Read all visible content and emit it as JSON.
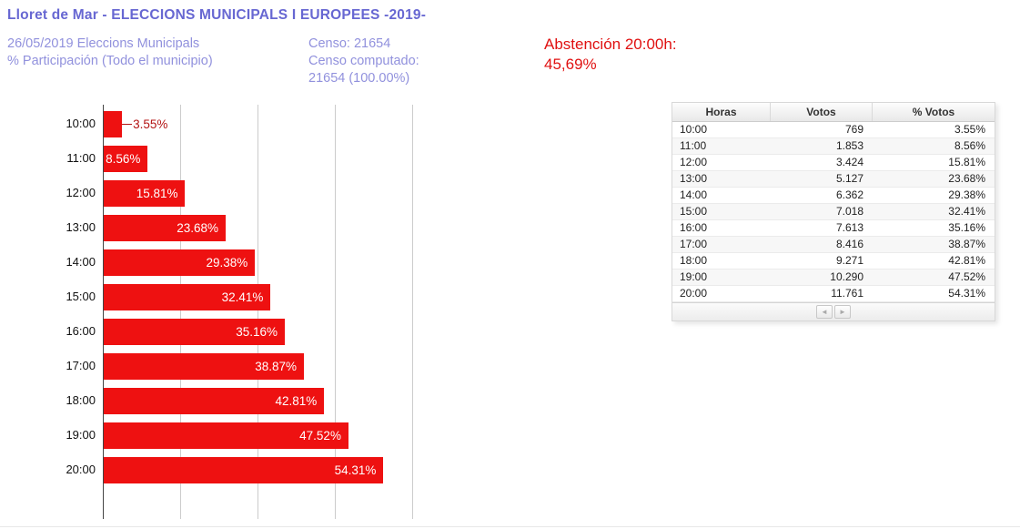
{
  "header": {
    "title": "Lloret de Mar - ELECCIONS MUNICIPALS I EUROPEES -2019-",
    "subtitle_line1": "26/05/2019 Eleccions Municipals",
    "subtitle_line2": "% Participación (Todo el municipio)",
    "censo_line1": "Censo: 21654",
    "censo_line2": "Censo computado:",
    "censo_line3": "21654 (100.00%)",
    "abstencion_line1": "Abstención 20:00h:",
    "abstencion_line2": "45,69%"
  },
  "colors": {
    "title_blue": "#6767d2",
    "subtitle_blue": "#9191dd",
    "abstencion_red": "#e01111",
    "bar_red": "#ee1111",
    "outside_label_red": "#b41414",
    "gridline_gray": "#cccccc"
  },
  "chart_data": {
    "type": "bar",
    "orientation": "horizontal",
    "title": "",
    "xlabel": "",
    "ylabel": "",
    "categories": [
      "10:00",
      "11:00",
      "12:00",
      "13:00",
      "14:00",
      "15:00",
      "16:00",
      "17:00",
      "18:00",
      "19:00",
      "20:00"
    ],
    "values": [
      3.55,
      8.56,
      15.81,
      23.68,
      29.38,
      32.41,
      35.16,
      38.87,
      42.81,
      47.52,
      54.31
    ],
    "value_labels": [
      "3.55%",
      "8.56%",
      "15.81%",
      "23.68%",
      "29.38%",
      "32.41%",
      "35.16%",
      "38.87%",
      "42.81%",
      "47.52%",
      "54.31%"
    ],
    "xlim": [
      0,
      60
    ],
    "gridlines_at": [
      15,
      30,
      45,
      60
    ],
    "grid": true,
    "legend": false,
    "bar_color": "#ee1111"
  },
  "table": {
    "columns": [
      "Horas",
      "Votos",
      "% Votos"
    ],
    "rows": [
      [
        "10:00",
        "769",
        "3.55%"
      ],
      [
        "11:00",
        "1.853",
        "8.56%"
      ],
      [
        "12:00",
        "3.424",
        "15.81%"
      ],
      [
        "13:00",
        "5.127",
        "23.68%"
      ],
      [
        "14:00",
        "6.362",
        "29.38%"
      ],
      [
        "15:00",
        "7.018",
        "32.41%"
      ],
      [
        "16:00",
        "7.613",
        "35.16%"
      ],
      [
        "17:00",
        "8.416",
        "38.87%"
      ],
      [
        "18:00",
        "9.271",
        "42.81%"
      ],
      [
        "19:00",
        "10.290",
        "47.52%"
      ],
      [
        "20:00",
        "11.761",
        "54.31%"
      ]
    ],
    "pager": {
      "prev_icon": "◄",
      "next_icon": "►"
    }
  }
}
